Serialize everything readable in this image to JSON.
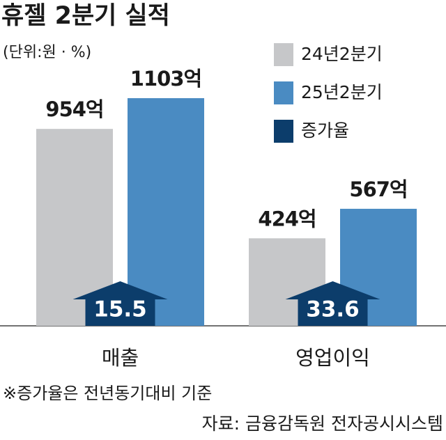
{
  "chart_data": {
    "type": "bar",
    "title": "휴젤 2분기 실적",
    "subtitle": "(단위:원 · %)",
    "categories": [
      "매출",
      "영업이익"
    ],
    "series": [
      {
        "name": "24년2분기",
        "color": "#c6c7c9",
        "values": [
          954,
          424
        ],
        "value_labels": [
          "954억",
          "424억"
        ]
      },
      {
        "name": "25년2분기",
        "color": "#4a8bc2",
        "values": [
          1103,
          567
        ],
        "value_labels": [
          "1103억",
          "567억"
        ]
      }
    ],
    "growth": {
      "name": "증가율",
      "color": "#0c3d6b",
      "values": [
        15.5,
        33.6
      ]
    },
    "note": "※증가율은 전년동기대비 기준",
    "source": "자료: 금융감독원 전자공시시스템"
  }
}
